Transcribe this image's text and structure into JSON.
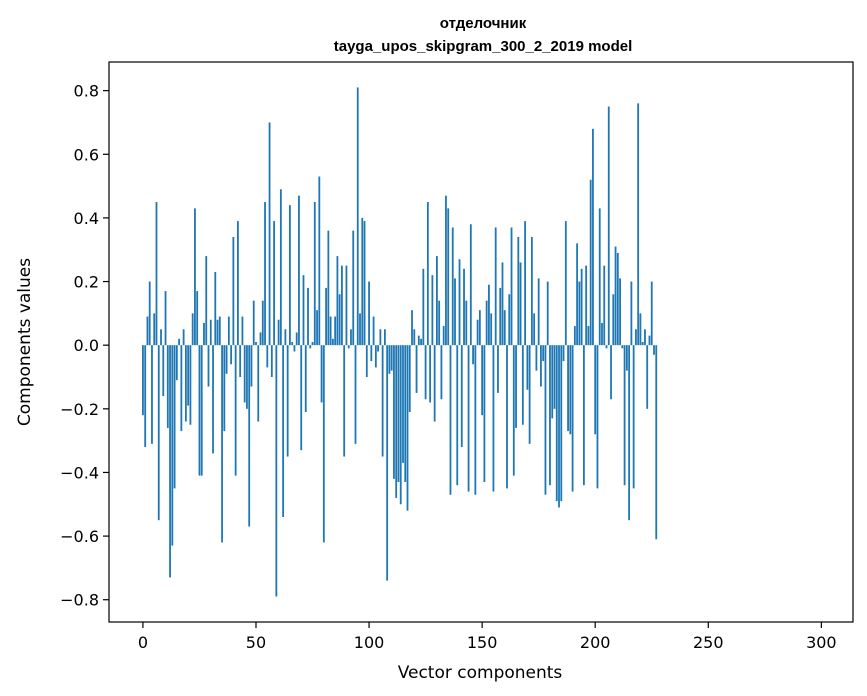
{
  "chart_data": {
    "type": "bar",
    "title_word": "отделочник",
    "title_model": "tayga_upos_skipgram_300_2_2019 model",
    "xlabel": "Vector components",
    "ylabel": "Components values",
    "xlim": [
      -15,
      314
    ],
    "ylim": [
      -0.87,
      0.89
    ],
    "xticks": [
      0,
      50,
      100,
      150,
      200,
      250,
      300
    ],
    "yticks": [
      -0.8,
      -0.6,
      -0.4,
      -0.2,
      0.0,
      0.2,
      0.4,
      0.6,
      0.8
    ],
    "ytick_labels": [
      "−0.8",
      "−0.6",
      "−0.4",
      "−0.2",
      "0.0",
      "0.2",
      "0.4",
      "0.6",
      "0.8"
    ],
    "bar_color": "#1f77b4",
    "values": [
      -0.22,
      -0.32,
      0.09,
      0.2,
      -0.31,
      0.1,
      0.45,
      -0.55,
      0.05,
      -0.16,
      0.17,
      -0.26,
      -0.73,
      -0.63,
      -0.45,
      -0.11,
      0.02,
      -0.27,
      0.05,
      -0.24,
      -0.19,
      -0.25,
      0.1,
      0.43,
      0.17,
      -0.41,
      -0.41,
      0.07,
      0.28,
      -0.13,
      0.08,
      -0.34,
      0.23,
      0.08,
      0.09,
      -0.62,
      -0.27,
      -0.09,
      0.09,
      -0.06,
      0.34,
      -0.41,
      0.39,
      -0.1,
      0.09,
      -0.18,
      -0.2,
      -0.57,
      -0.13,
      0.14,
      0.01,
      -0.24,
      0.04,
      0.14,
      0.45,
      -0.07,
      0.7,
      -0.1,
      0.39,
      -0.79,
      0.08,
      0.49,
      -0.54,
      0.05,
      -0.35,
      0.44,
      0.01,
      -0.02,
      0.04,
      0.47,
      -0.33,
      0.22,
      -0.21,
      0.18,
      -0.01,
      0.01,
      0.45,
      0.11,
      0.53,
      -0.18,
      -0.62,
      0.18,
      0.36,
      0.09,
      0.02,
      0.09,
      0.28,
      0.16,
      0.25,
      -0.35,
      0.25,
      -0.01,
      0.05,
      0.36,
      -0.31,
      0.81,
      0.1,
      0.4,
      0.39,
      -0.1,
      0.2,
      -0.05,
      0.09,
      -0.07,
      -0.02,
      0.05,
      -0.35,
      0.05,
      -0.74,
      -0.09,
      -0.08,
      -0.42,
      -0.48,
      -0.43,
      -0.5,
      -0.37,
      -0.43,
      -0.52,
      -0.21,
      0.11,
      0.05,
      -0.15,
      0.03,
      0.02,
      0.24,
      -0.17,
      0.45,
      -0.18,
      0.22,
      -0.24,
      0.28,
      0.14,
      -0.17,
      0.06,
      0.47,
      0.43,
      -0.47,
      0.37,
      0.21,
      -0.44,
      0.27,
      -0.32,
      0.24,
      0.14,
      -0.46,
      0.38,
      -0.06,
      -0.47,
      0.08,
      0.11,
      -0.22,
      -0.43,
      0.14,
      0.19,
      0.1,
      -0.46,
      0.37,
      -0.15,
      0.18,
      0.26,
      0.11,
      -0.45,
      0.16,
      0.37,
      -0.41,
      -0.26,
      0.34,
      0.26,
      -0.25,
      0.39,
      -0.14,
      -0.31,
      0.34,
      0.1,
      -0.08,
      0.21,
      -0.13,
      -0.05,
      -0.47,
      0.2,
      -0.44,
      -0.23,
      -0.2,
      -0.49,
      -0.51,
      -0.49,
      -0.05,
      0.39,
      -0.27,
      -0.28,
      -0.46,
      0.06,
      0.32,
      0.2,
      0.24,
      -0.44,
      0.25,
      0.06,
      0.52,
      0.68,
      -0.28,
      -0.45,
      0.43,
      0.07,
      0.25,
      -0.01,
      0.75,
      -0.17,
      0.16,
      0.31,
      0.29,
      0.21,
      -0.01,
      -0.44,
      -0.08,
      -0.55,
      0.2,
      -0.45,
      0.05,
      0.76,
      0.1,
      0.01,
      0.05,
      -0.2,
      0.03,
      0.2,
      -0.03,
      -0.61
    ]
  }
}
